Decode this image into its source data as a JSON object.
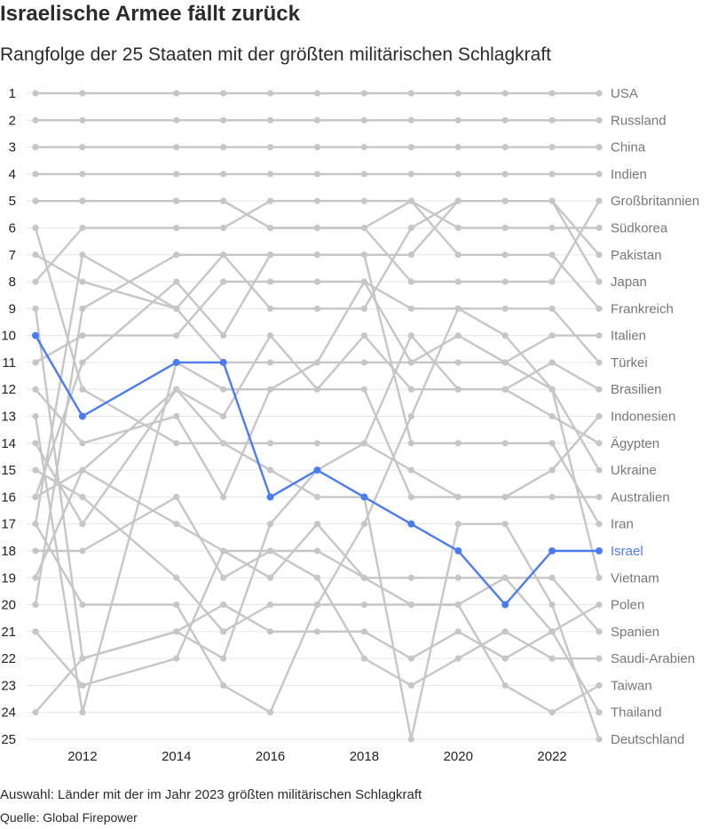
{
  "title": "Israelische Armee fällt zurück",
  "subtitle": "Rangfolge der 25 Staaten mit der größten militärischen Schlagkraft",
  "note": "Auswahl: Länder mit der im Jahr 2023 größten militärischen Schlagkraft",
  "source": "Quelle: Global Firepower",
  "colors": {
    "line": "#c6c6c6",
    "highlight": "#4a7cf0",
    "grid": "#e6e6e6",
    "label": "#777777"
  },
  "chart_data": {
    "type": "line",
    "subtype": "bump",
    "x": [
      2011,
      2012,
      2014,
      2015,
      2016,
      2017,
      2018,
      2019,
      2020,
      2021,
      2022,
      2023
    ],
    "xticks": [
      2012,
      2014,
      2016,
      2018,
      2020,
      2022
    ],
    "ylim": [
      1,
      25
    ],
    "y_reversed": true,
    "yticks": [
      1,
      2,
      3,
      4,
      5,
      6,
      7,
      8,
      9,
      10,
      11,
      12,
      13,
      14,
      15,
      16,
      17,
      18,
      19,
      20,
      21,
      22,
      23,
      24,
      25
    ],
    "highlight": "Israel",
    "series": [
      {
        "name": "USA",
        "values": [
          1,
          1,
          1,
          1,
          1,
          1,
          1,
          1,
          1,
          1,
          1,
          1
        ]
      },
      {
        "name": "Russland",
        "values": [
          2,
          2,
          2,
          2,
          2,
          2,
          2,
          2,
          2,
          2,
          2,
          2
        ]
      },
      {
        "name": "China",
        "values": [
          3,
          3,
          3,
          3,
          3,
          3,
          3,
          3,
          3,
          3,
          3,
          3
        ]
      },
      {
        "name": "Indien",
        "values": [
          4,
          4,
          4,
          4,
          4,
          4,
          4,
          4,
          4,
          4,
          4,
          4
        ]
      },
      {
        "name": "Großbritannien",
        "values": [
          5,
          5,
          5,
          5,
          6,
          6,
          6,
          8,
          8,
          8,
          8,
          5
        ]
      },
      {
        "name": "Südkorea",
        "values": [
          8,
          6,
          6,
          6,
          5,
          5,
          5,
          5,
          6,
          6,
          6,
          6
        ]
      },
      {
        "name": "Pakistan",
        "values": [
          16,
          11,
          8,
          10,
          7,
          7,
          7,
          7,
          5,
          5,
          5,
          7
        ]
      },
      {
        "name": "Japan",
        "values": [
          17,
          7,
          9,
          7,
          9,
          9,
          9,
          6,
          5,
          5,
          5,
          8
        ]
      },
      {
        "name": "Frankreich",
        "values": [
          5,
          5,
          5,
          5,
          6,
          6,
          6,
          5,
          7,
          7,
          7,
          9
        ]
      },
      {
        "name": "Italien",
        "values": [
          12,
          14,
          13,
          16,
          12,
          11,
          8,
          11,
          10,
          11,
          10,
          10
        ]
      },
      {
        "name": "Türkei",
        "values": [
          11,
          10,
          10,
          8,
          8,
          8,
          8,
          9,
          9,
          9,
          9,
          11
        ]
      },
      {
        "name": "Brasilien",
        "values": [
          9,
          22,
          21,
          22,
          17,
          15,
          14,
          10,
          12,
          12,
          11,
          12
        ]
      },
      {
        "name": "Indonesien",
        "values": [
          19,
          15,
          12,
          14,
          14,
          14,
          14,
          15,
          16,
          16,
          15,
          13
        ]
      },
      {
        "name": "Ägypten",
        "values": [
          14,
          17,
          12,
          13,
          10,
          12,
          10,
          12,
          12,
          12,
          13,
          14
        ]
      },
      {
        "name": "Ukraine",
        "values": [
          7,
          8,
          9,
          11,
          11,
          11,
          11,
          11,
          11,
          11,
          12,
          15
        ]
      },
      {
        "name": "Australien",
        "values": [
          13,
          24,
          11,
          12,
          12,
          12,
          12,
          16,
          16,
          16,
          16,
          16
        ]
      },
      {
        "name": "Iran",
        "values": [
          20,
          9,
          7,
          7,
          7,
          7,
          7,
          14,
          14,
          14,
          14,
          17
        ]
      },
      {
        "name": "Israel",
        "values": [
          10,
          13,
          11,
          11,
          16,
          15,
          16,
          17,
          18,
          20,
          18,
          18
        ]
      },
      {
        "name": "Vietnam",
        "values": [
          17,
          20,
          20,
          23,
          24,
          20,
          17,
          13,
          9,
          10,
          12,
          19
        ]
      },
      {
        "name": "Polen",
        "values": [
          21,
          23,
          22,
          18,
          19,
          17,
          19,
          20,
          20,
          19,
          21,
          20
        ]
      },
      {
        "name": "Spanien",
        "values": [
          16,
          15,
          17,
          18,
          18,
          18,
          19,
          19,
          19,
          19,
          19,
          21
        ]
      },
      {
        "name": "Saudi-Arabien",
        "values": [
          18,
          18,
          16,
          19,
          18,
          19,
          22,
          23,
          22,
          21,
          22,
          22
        ]
      },
      {
        "name": "Taiwan",
        "values": [
          15,
          16,
          19,
          21,
          20,
          20,
          20,
          20,
          20,
          23,
          24,
          23
        ]
      },
      {
        "name": "Thailand",
        "values": [
          24,
          22,
          21,
          20,
          21,
          21,
          21,
          22,
          21,
          22,
          21,
          24
        ]
      },
      {
        "name": "Deutschland",
        "values": [
          6,
          12,
          14,
          14,
          15,
          16,
          16,
          25,
          17,
          17,
          20,
          25
        ]
      }
    ]
  }
}
